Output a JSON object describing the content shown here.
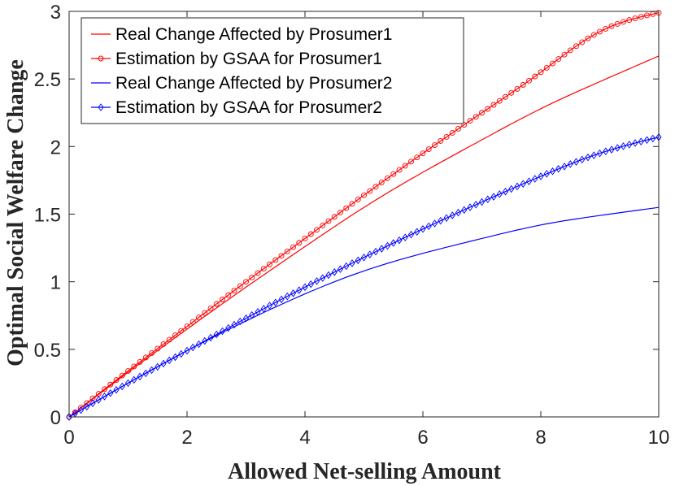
{
  "chart_data": {
    "type": "line",
    "xlabel": "Allowed Net-selling Amount",
    "ylabel": "Optimal Social Welfare Change",
    "xlim": [
      0,
      10
    ],
    "ylim": [
      0,
      3
    ],
    "x_ticks": [
      "0",
      "2",
      "4",
      "6",
      "8",
      "10"
    ],
    "y_ticks": [
      "0",
      "0.5",
      "1",
      "1.5",
      "2",
      "2.5",
      "3"
    ],
    "legend_position": "top-left",
    "grid": false,
    "x": [
      0,
      1,
      2,
      3,
      4,
      5,
      6,
      7,
      8,
      9,
      10
    ],
    "series": [
      {
        "name": "Real Change Affected by Prosumer1",
        "color": "#ff0000",
        "marker": "none",
        "values": [
          0,
          0.33,
          0.65,
          0.96,
          1.26,
          1.55,
          1.81,
          2.05,
          2.28,
          2.48,
          2.67
        ]
      },
      {
        "name": "Estimation by GSAA for Prosumer1",
        "color": "#ff0000",
        "marker": "circle",
        "values": [
          0,
          0.34,
          0.67,
          1.0,
          1.32,
          1.64,
          1.95,
          2.25,
          2.55,
          2.85,
          2.99
        ]
      },
      {
        "name": "Real Change Affected by Prosumer2",
        "color": "#0000ff",
        "marker": "none",
        "values": [
          0,
          0.25,
          0.49,
          0.71,
          0.91,
          1.08,
          1.21,
          1.32,
          1.42,
          1.49,
          1.55
        ]
      },
      {
        "name": "Estimation by GSAA for Prosumer2",
        "color": "#0000ff",
        "marker": "diamond",
        "values": [
          0,
          0.25,
          0.49,
          0.73,
          0.96,
          1.18,
          1.39,
          1.59,
          1.78,
          1.95,
          2.07
        ]
      }
    ]
  }
}
